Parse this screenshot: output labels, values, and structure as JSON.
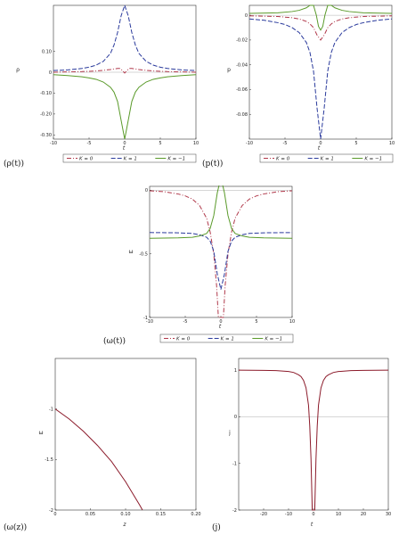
{
  "chart_data": [
    {
      "type": "line",
      "caption": "(ρ(t))",
      "ylabel": "ρ",
      "xlabel": "t",
      "xlim": [
        -10,
        10
      ],
      "ylim": [
        -0.32,
        0.32
      ],
      "xticks": [
        "-10",
        "-5",
        "0",
        "5",
        "10"
      ],
      "xtick_values": [
        -10,
        -5,
        0,
        5,
        10
      ],
      "yticks": [
        "0.10",
        "0",
        "-0.10",
        "-0.20",
        "-0.30"
      ],
      "ytick_values": [
        0.1,
        0,
        -0.1,
        -0.2,
        -0.3
      ],
      "legend": [
        "K = 0",
        "K = 1",
        "K = −1"
      ],
      "series": [
        {
          "name": "K = 0",
          "color": "#b0384a",
          "style": "dashdot",
          "x": [
            -10,
            -6,
            -4,
            -3,
            -2,
            -1,
            -0.6,
            -0.3,
            0,
            0.3,
            0.6,
            1,
            2,
            3,
            4,
            6,
            10
          ],
          "y": [
            0.0,
            0.003,
            0.006,
            0.009,
            0.013,
            0.018,
            0.018,
            0.007,
            -0.004,
            0.007,
            0.018,
            0.018,
            0.013,
            0.009,
            0.006,
            0.003,
            0.0
          ]
        },
        {
          "name": "K = 1",
          "color": "#2a3a9c",
          "style": "dash",
          "x": [
            -10,
            -8,
            -6,
            -5,
            -4,
            -3,
            -2,
            -1.5,
            -1,
            -0.5,
            0,
            0.5,
            1,
            1.5,
            2,
            3,
            4,
            5,
            6,
            8,
            10
          ],
          "y": [
            0.008,
            0.011,
            0.018,
            0.024,
            0.034,
            0.052,
            0.09,
            0.13,
            0.19,
            0.27,
            0.32,
            0.27,
            0.19,
            0.13,
            0.09,
            0.052,
            0.034,
            0.024,
            0.018,
            0.011,
            0.008
          ]
        },
        {
          "name": "K = −1",
          "color": "#5a9a2a",
          "style": "solid",
          "x": [
            -10,
            -8,
            -6,
            -5,
            -4,
            -3,
            -2,
            -1.5,
            -1,
            -0.5,
            0,
            0.5,
            1,
            1.5,
            2,
            3,
            4,
            5,
            6,
            8,
            10
          ],
          "y": [
            -0.012,
            -0.016,
            -0.022,
            -0.027,
            -0.034,
            -0.047,
            -0.072,
            -0.095,
            -0.14,
            -0.23,
            -0.32,
            -0.23,
            -0.14,
            -0.095,
            -0.072,
            -0.047,
            -0.034,
            -0.027,
            -0.022,
            -0.016,
            -0.012
          ]
        }
      ]
    },
    {
      "type": "line",
      "caption": "(p(t))",
      "ylabel": "p",
      "xlabel": "t",
      "xlim": [
        -10,
        10
      ],
      "ylim": [
        -0.1,
        0.008
      ],
      "xticks": [
        "-10",
        "-5",
        "0",
        "5",
        "10"
      ],
      "xtick_values": [
        -10,
        -5,
        0,
        5,
        10
      ],
      "yticks": [
        "0",
        "-0.02",
        "-0.04",
        "-0.06",
        "-0.08"
      ],
      "ytick_values": [
        0,
        -0.02,
        -0.04,
        -0.06,
        -0.08
      ],
      "legend": [
        "K = 0",
        "K = 1",
        "K = −1"
      ],
      "series": [
        {
          "name": "K = 0",
          "color": "#b0384a",
          "style": "dashdot",
          "x": [
            -10,
            -6,
            -4,
            -3,
            -2,
            -1.5,
            -1,
            -0.5,
            0,
            0.5,
            1,
            1.5,
            2,
            3,
            4,
            6,
            10
          ],
          "y": [
            -0.0005,
            -0.001,
            -0.002,
            -0.003,
            -0.005,
            -0.007,
            -0.01,
            -0.016,
            -0.02,
            -0.016,
            -0.01,
            -0.007,
            -0.005,
            -0.003,
            -0.002,
            -0.001,
            -0.0005
          ]
        },
        {
          "name": "K = 1",
          "color": "#2a3a9c",
          "style": "dash",
          "x": [
            -10,
            -8,
            -6,
            -5,
            -4,
            -3,
            -2,
            -1.5,
            -1,
            -0.5,
            0,
            0.5,
            1,
            1.5,
            2,
            3,
            4,
            5,
            6,
            8,
            10
          ],
          "y": [
            -0.003,
            -0.004,
            -0.006,
            -0.0075,
            -0.01,
            -0.014,
            -0.022,
            -0.03,
            -0.045,
            -0.075,
            -0.1,
            -0.075,
            -0.045,
            -0.03,
            -0.022,
            -0.014,
            -0.01,
            -0.0075,
            -0.006,
            -0.004,
            -0.003
          ]
        },
        {
          "name": "K = −1",
          "color": "#5a9a2a",
          "style": "solid",
          "x": [
            -10,
            -6,
            -4,
            -3,
            -2,
            -1.5,
            -1,
            -0.6,
            -0.3,
            0,
            0.3,
            0.6,
            1,
            1.5,
            2,
            3,
            4,
            6,
            10
          ],
          "y": [
            0.0015,
            0.002,
            0.003,
            0.004,
            0.006,
            0.008,
            0.008,
            0.0,
            -0.009,
            -0.012,
            -0.009,
            0.0,
            0.008,
            0.008,
            0.006,
            0.004,
            0.003,
            0.002,
            0.0015
          ]
        }
      ]
    },
    {
      "type": "line",
      "caption": "(ω(t))",
      "ylabel": "ω",
      "xlabel": "t",
      "xlim": [
        -10,
        10
      ],
      "ylim": [
        -1,
        0.03
      ],
      "xticks": [
        "-10",
        "-5",
        "0",
        "5",
        "10"
      ],
      "xtick_values": [
        -10,
        -5,
        0,
        5,
        10
      ],
      "yticks": [
        "0",
        "-0.5",
        "-1"
      ],
      "ytick_values": [
        0,
        -0.5,
        -1
      ],
      "legend": [
        "K = 0",
        "K = 1",
        "K = −1"
      ],
      "series": [
        {
          "name": "K = 0",
          "color": "#b0384a",
          "style": "dashdot",
          "x": [
            -10,
            -8,
            -6,
            -5,
            -4,
            -3,
            -2,
            -1.5,
            -1,
            -0.6,
            -0.35,
            0.35,
            0.6,
            1,
            1.5,
            2,
            3,
            4,
            5,
            6,
            8,
            10
          ],
          "y": [
            -0.005,
            -0.012,
            -0.03,
            -0.045,
            -0.07,
            -0.12,
            -0.22,
            -0.33,
            -0.5,
            -0.75,
            -1.0,
            -1.0,
            -0.75,
            -0.5,
            -0.33,
            -0.22,
            -0.12,
            -0.07,
            -0.045,
            -0.03,
            -0.012,
            -0.005
          ]
        },
        {
          "name": "K = 1",
          "color": "#2a3a9c",
          "style": "dash",
          "x": [
            -10,
            -6,
            -4,
            -3,
            -2,
            -1.5,
            -1,
            -0.5,
            0,
            0.5,
            1,
            1.5,
            2,
            3,
            4,
            6,
            10
          ],
          "y": [
            -0.333,
            -0.335,
            -0.34,
            -0.35,
            -0.37,
            -0.4,
            -0.48,
            -0.66,
            -0.78,
            -0.66,
            -0.48,
            -0.4,
            -0.37,
            -0.35,
            -0.34,
            -0.335,
            -0.333
          ]
        },
        {
          "name": "K = −1",
          "color": "#5a9a2a",
          "style": "solid",
          "x": [
            -10,
            -6,
            -4,
            -3,
            -2,
            -1.5,
            -1,
            -0.5,
            0,
            0.5,
            1,
            1.5,
            2,
            3,
            4,
            6,
            10
          ],
          "y": [
            -0.378,
            -0.375,
            -0.37,
            -0.36,
            -0.34,
            -0.3,
            -0.2,
            -0.02,
            0.1,
            -0.02,
            -0.2,
            -0.3,
            -0.34,
            -0.36,
            -0.37,
            -0.375,
            -0.378
          ]
        }
      ]
    },
    {
      "type": "line",
      "caption": "(ω(z))",
      "ylabel": "ω",
      "xlabel": "z",
      "xlim": [
        0,
        0.2
      ],
      "ylim": [
        -2,
        -0.5
      ],
      "xticks": [
        "0",
        "0.05",
        "0.10",
        "0.15",
        "0.20"
      ],
      "xtick_values": [
        0,
        0.05,
        0.1,
        0.15,
        0.2
      ],
      "yticks": [
        "-1",
        "-1.5",
        "-2"
      ],
      "ytick_values": [
        -1,
        -1.5,
        -2
      ],
      "series": [
        {
          "color": "#8b1a2a",
          "style": "solid",
          "x": [
            0,
            0.02,
            0.04,
            0.06,
            0.08,
            0.1,
            0.12,
            0.124
          ],
          "y": [
            -1.0,
            -1.1,
            -1.22,
            -1.36,
            -1.52,
            -1.72,
            -1.95,
            -2.0
          ]
        }
      ]
    },
    {
      "type": "line",
      "caption": "(j)",
      "ylabel": "j",
      "xlabel": "t",
      "xlim": [
        -30,
        30
      ],
      "ylim": [
        -2,
        1.25
      ],
      "xticks": [
        "-20",
        "-10",
        "0",
        "10",
        "20",
        "30"
      ],
      "xtick_values": [
        -20,
        -10,
        0,
        10,
        20,
        30
      ],
      "yticks": [
        "1",
        "0",
        "-1",
        "-2"
      ],
      "ytick_values": [
        1,
        0,
        -1,
        -2
      ],
      "series": [
        {
          "color": "#8b1a2a",
          "style": "solid",
          "x": [
            -30,
            -20,
            -15,
            -10,
            -8,
            -6,
            -5,
            -4,
            -3,
            -2,
            -1.5,
            -1,
            -0.5,
            0.5,
            1,
            1.5,
            2,
            3,
            4,
            5,
            6,
            8,
            10,
            15,
            20,
            30
          ],
          "y": [
            1.0,
            0.995,
            0.99,
            0.97,
            0.95,
            0.9,
            0.86,
            0.78,
            0.62,
            0.25,
            -0.2,
            -0.9,
            -2.0,
            -2.0,
            -0.9,
            -0.2,
            0.25,
            0.62,
            0.78,
            0.86,
            0.9,
            0.95,
            0.97,
            0.99,
            0.995,
            1.0
          ]
        }
      ]
    }
  ]
}
